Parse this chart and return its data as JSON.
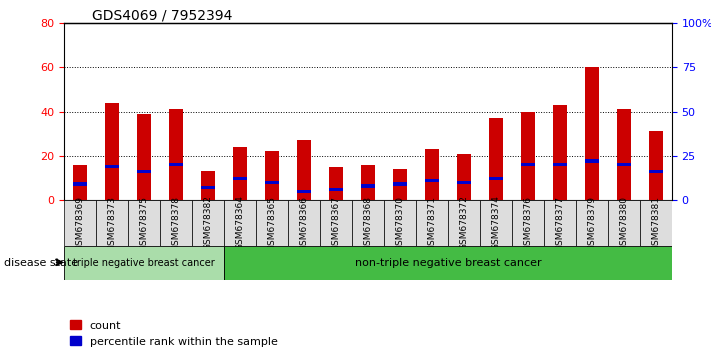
{
  "title": "GDS4069 / 7952394",
  "samples": [
    "GSM678369",
    "GSM678373",
    "GSM678375",
    "GSM678378",
    "GSM678382",
    "GSM678364",
    "GSM678365",
    "GSM678366",
    "GSM678367",
    "GSM678368",
    "GSM678370",
    "GSM678371",
    "GSM678372",
    "GSM678374",
    "GSM678376",
    "GSM678377",
    "GSM678379",
    "GSM678380",
    "GSM678381"
  ],
  "count_values": [
    16,
    44,
    39,
    41,
    13,
    24,
    22,
    27,
    15,
    16,
    14,
    23,
    21,
    37,
    40,
    43,
    60,
    41,
    31
  ],
  "percentile_values": [
    9,
    19,
    16,
    20,
    7,
    12,
    10,
    5,
    6,
    8,
    9,
    11,
    10,
    12,
    20,
    20,
    22,
    20,
    16
  ],
  "bar_color": "#cc0000",
  "percentile_color": "#0000cc",
  "ylim_left": [
    0,
    80
  ],
  "ylim_right": [
    0,
    100
  ],
  "yticks_left": [
    0,
    20,
    40,
    60,
    80
  ],
  "yticks_right": [
    0,
    25,
    50,
    75,
    100
  ],
  "ytick_labels_right": [
    "0",
    "25",
    "50",
    "75",
    "100%"
  ],
  "group1_label": "triple negative breast cancer",
  "group2_label": "non-triple negative breast cancer",
  "group1_count": 5,
  "group2_count": 14,
  "disease_state_label": "disease state",
  "legend_count_label": "count",
  "legend_percentile_label": "percentile rank within the sample",
  "group1_bg": "#aaddaa",
  "group2_bg": "#44bb44",
  "xtick_bg": "#dddddd",
  "blue_bar_height": 1.5
}
